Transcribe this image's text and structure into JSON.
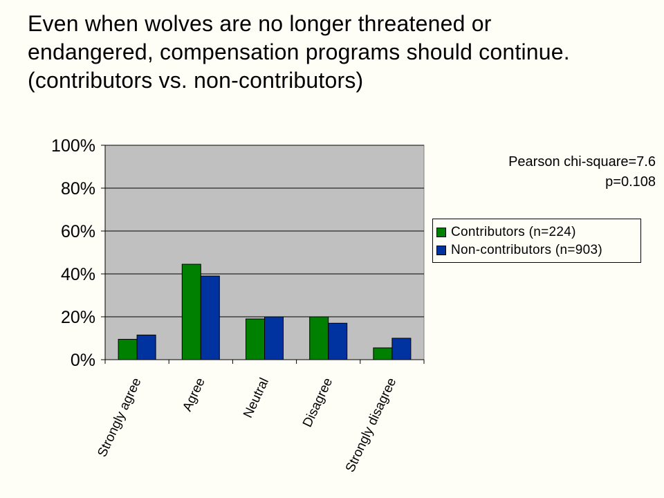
{
  "title_lines": [
    "Even when wolves are no longer threatened or",
    "endangered, compensation programs should continue.",
    "(contributors vs. non-contributors)"
  ],
  "stats": {
    "line1": "Pearson chi-square=7.6",
    "line2": "p=0.108"
  },
  "colors": {
    "contributors": "#008000",
    "non_contributors": "#0033a0",
    "plot_area": "#c0c0c0"
  },
  "chart_data": {
    "type": "bar",
    "categories": [
      "Strongly agree",
      "Agree",
      "Neutral",
      "Disagree",
      "Strongly disagree"
    ],
    "series": [
      {
        "name": "Contributors (n=224)",
        "values": [
          9.5,
          44.5,
          19,
          20,
          5.5
        ]
      },
      {
        "name": "Non-contributors (n=903)",
        "values": [
          11.5,
          39,
          20,
          17,
          10
        ]
      }
    ],
    "y_ticks": [
      "0%",
      "20%",
      "40%",
      "60%",
      "80%",
      "100%"
    ],
    "ylim": [
      0,
      100
    ],
    "grid": true,
    "legend_position": "right"
  }
}
